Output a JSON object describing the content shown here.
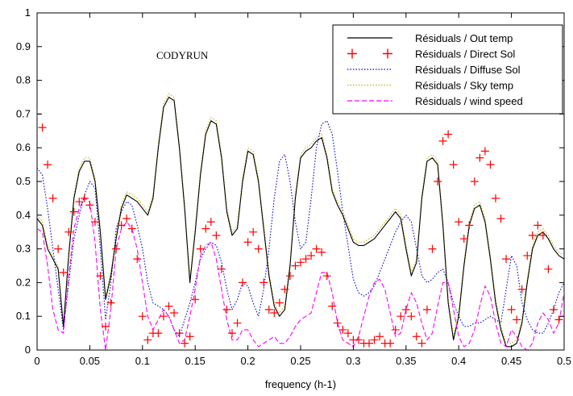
{
  "chart_data": {
    "type": "line",
    "title": "",
    "xlabel": "frequency (h-1)",
    "ylabel": "",
    "annotation": "CODYRUN",
    "xlim": [
      0,
      0.5
    ],
    "ylim": [
      0,
      1
    ],
    "x_ticks": [
      "0",
      "0.05",
      "0.1",
      "0.15",
      "0.2",
      "0.25",
      "0.3",
      "0.35",
      "0.4",
      "0.45",
      "0.5"
    ],
    "y_ticks": [
      "0",
      "0.1",
      "0.2",
      "0.3",
      "0.4",
      "0.5",
      "0.6",
      "0.7",
      "0.8",
      "0.9",
      "1"
    ],
    "grid": false,
    "legend_position": "top-right",
    "series": [
      {
        "name": "Résiduals / Out temp",
        "color": "#000000",
        "style": "solid",
        "x": [
          0,
          0.005,
          0.01,
          0.015,
          0.02,
          0.025,
          0.03,
          0.035,
          0.04,
          0.045,
          0.05,
          0.055,
          0.06,
          0.065,
          0.07,
          0.075,
          0.08,
          0.085,
          0.09,
          0.095,
          0.1,
          0.105,
          0.11,
          0.115,
          0.12,
          0.125,
          0.13,
          0.135,
          0.14,
          0.145,
          0.15,
          0.155,
          0.16,
          0.165,
          0.17,
          0.175,
          0.18,
          0.185,
          0.19,
          0.195,
          0.2,
          0.205,
          0.21,
          0.215,
          0.22,
          0.225,
          0.23,
          0.235,
          0.24,
          0.245,
          0.25,
          0.255,
          0.26,
          0.265,
          0.27,
          0.275,
          0.28,
          0.285,
          0.29,
          0.295,
          0.3,
          0.305,
          0.31,
          0.315,
          0.32,
          0.325,
          0.33,
          0.335,
          0.34,
          0.345,
          0.35,
          0.355,
          0.36,
          0.365,
          0.37,
          0.375,
          0.38,
          0.385,
          0.39,
          0.395,
          0.4,
          0.405,
          0.41,
          0.415,
          0.42,
          0.425,
          0.43,
          0.435,
          0.44,
          0.445,
          0.45,
          0.455,
          0.46,
          0.465,
          0.47,
          0.475,
          0.48,
          0.485,
          0.49,
          0.495,
          0.5
        ],
        "y": [
          0.39,
          0.37,
          0.3,
          0.27,
          0.24,
          0.07,
          0.28,
          0.45,
          0.53,
          0.56,
          0.56,
          0.5,
          0.35,
          0.15,
          0.22,
          0.33,
          0.42,
          0.46,
          0.45,
          0.44,
          0.42,
          0.4,
          0.45,
          0.6,
          0.72,
          0.75,
          0.74,
          0.6,
          0.42,
          0.2,
          0.35,
          0.52,
          0.64,
          0.68,
          0.67,
          0.57,
          0.41,
          0.34,
          0.36,
          0.5,
          0.59,
          0.58,
          0.5,
          0.36,
          0.22,
          0.13,
          0.1,
          0.12,
          0.25,
          0.45,
          0.57,
          0.59,
          0.6,
          0.62,
          0.63,
          0.57,
          0.47,
          0.43,
          0.4,
          0.36,
          0.32,
          0.31,
          0.31,
          0.32,
          0.33,
          0.35,
          0.37,
          0.39,
          0.41,
          0.39,
          0.3,
          0.22,
          0.26,
          0.45,
          0.56,
          0.57,
          0.55,
          0.37,
          0.14,
          0.03,
          0.1,
          0.25,
          0.37,
          0.42,
          0.43,
          0.38,
          0.27,
          0.14,
          0.06,
          0.01,
          0.01,
          0.02,
          0.08,
          0.2,
          0.3,
          0.34,
          0.35,
          0.33,
          0.3,
          0.28,
          0.27
        ]
      },
      {
        "name": "Résiduals / Direct Sol",
        "color": "#ff0000",
        "style": "plus",
        "x": [
          0,
          0.005,
          0.01,
          0.015,
          0.02,
          0.025,
          0.03,
          0.035,
          0.04,
          0.045,
          0.05,
          0.055,
          0.06,
          0.065,
          0.07,
          0.075,
          0.08,
          0.085,
          0.09,
          0.095,
          0.1,
          0.105,
          0.11,
          0.115,
          0.12,
          0.125,
          0.13,
          0.135,
          0.14,
          0.145,
          0.15,
          0.155,
          0.16,
          0.165,
          0.17,
          0.175,
          0.18,
          0.185,
          0.19,
          0.195,
          0.2,
          0.205,
          0.21,
          0.215,
          0.22,
          0.225,
          0.23,
          0.235,
          0.24,
          0.245,
          0.25,
          0.255,
          0.26,
          0.265,
          0.27,
          0.275,
          0.28,
          0.285,
          0.29,
          0.295,
          0.3,
          0.305,
          0.31,
          0.315,
          0.32,
          0.325,
          0.33,
          0.335,
          0.34,
          0.345,
          0.35,
          0.355,
          0.36,
          0.365,
          0.37,
          0.375,
          0.38,
          0.385,
          0.39,
          0.395,
          0.4,
          0.405,
          0.41,
          0.415,
          0.42,
          0.425,
          0.43,
          0.435,
          0.44,
          0.445,
          0.45,
          0.455,
          0.46,
          0.465,
          0.47,
          0.475,
          0.48,
          0.485,
          0.49,
          0.495,
          0.5
        ],
        "y": [
          0.7,
          0.66,
          0.55,
          0.45,
          0.3,
          0.23,
          0.35,
          0.41,
          0.44,
          0.45,
          0.43,
          0.38,
          0.22,
          0.07,
          0.14,
          0.3,
          0.37,
          0.39,
          0.36,
          0.27,
          0.1,
          0.03,
          0.05,
          0.05,
          0.1,
          0.13,
          0.11,
          0.05,
          0.02,
          0.04,
          0.15,
          0.3,
          0.36,
          0.38,
          0.34,
          0.24,
          0.12,
          0.05,
          0.08,
          0.2,
          0.32,
          0.35,
          0.3,
          0.2,
          0.12,
          0.11,
          0.14,
          0.18,
          0.22,
          0.25,
          0.26,
          0.27,
          0.28,
          0.3,
          0.29,
          0.22,
          0.13,
          0.08,
          0.06,
          0.05,
          0.03,
          0.03,
          0.02,
          0.02,
          0.03,
          0.04,
          0.02,
          0.02,
          0.06,
          0.1,
          0.12,
          0.1,
          0.04,
          0.02,
          0.12,
          0.3,
          0.5,
          0.62,
          0.64,
          0.55,
          0.38,
          0.33,
          0.37,
          0.5,
          0.57,
          0.59,
          0.55,
          0.45,
          0.39,
          0.27,
          0.12,
          0.09,
          0.18,
          0.28,
          0.34,
          0.37,
          0.34,
          0.24,
          0.12,
          0.09,
          0.1
        ]
      },
      {
        "name": "Résiduals / Diffuse Sol",
        "color": "#0000cc",
        "style": "dotted",
        "x": [
          0,
          0.005,
          0.01,
          0.015,
          0.02,
          0.025,
          0.03,
          0.035,
          0.04,
          0.045,
          0.05,
          0.055,
          0.06,
          0.065,
          0.07,
          0.075,
          0.08,
          0.085,
          0.09,
          0.095,
          0.1,
          0.105,
          0.11,
          0.115,
          0.12,
          0.125,
          0.13,
          0.135,
          0.14,
          0.145,
          0.15,
          0.155,
          0.16,
          0.165,
          0.17,
          0.175,
          0.18,
          0.185,
          0.19,
          0.195,
          0.2,
          0.205,
          0.21,
          0.215,
          0.22,
          0.225,
          0.23,
          0.235,
          0.24,
          0.245,
          0.25,
          0.255,
          0.26,
          0.265,
          0.27,
          0.275,
          0.28,
          0.285,
          0.29,
          0.295,
          0.3,
          0.305,
          0.31,
          0.315,
          0.32,
          0.325,
          0.33,
          0.335,
          0.34,
          0.345,
          0.35,
          0.355,
          0.36,
          0.365,
          0.37,
          0.375,
          0.38,
          0.385,
          0.39,
          0.395,
          0.4,
          0.405,
          0.41,
          0.415,
          0.42,
          0.425,
          0.43,
          0.435,
          0.44,
          0.445,
          0.45,
          0.455,
          0.46,
          0.465,
          0.47,
          0.475,
          0.48,
          0.485,
          0.49,
          0.495,
          0.5
        ],
        "y": [
          0.54,
          0.52,
          0.42,
          0.3,
          0.18,
          0.06,
          0.2,
          0.33,
          0.4,
          0.46,
          0.5,
          0.48,
          0.3,
          0.09,
          0.2,
          0.36,
          0.41,
          0.44,
          0.43,
          0.37,
          0.3,
          0.2,
          0.14,
          0.13,
          0.12,
          0.1,
          0.06,
          0.04,
          0.09,
          0.14,
          0.2,
          0.27,
          0.3,
          0.32,
          0.31,
          0.26,
          0.18,
          0.12,
          0.15,
          0.2,
          0.19,
          0.14,
          0.1,
          0.18,
          0.3,
          0.45,
          0.56,
          0.58,
          0.5,
          0.38,
          0.3,
          0.32,
          0.45,
          0.6,
          0.67,
          0.68,
          0.64,
          0.53,
          0.41,
          0.31,
          0.21,
          0.17,
          0.16,
          0.17,
          0.19,
          0.23,
          0.27,
          0.31,
          0.35,
          0.38,
          0.4,
          0.38,
          0.3,
          0.22,
          0.2,
          0.21,
          0.23,
          0.24,
          0.2,
          0.14,
          0.1,
          0.07,
          0.07,
          0.08,
          0.08,
          0.09,
          0.1,
          0.09,
          0.08,
          0.18,
          0.28,
          0.25,
          0.14,
          0.09,
          0.06,
          0.05,
          0.05,
          0.08,
          0.12,
          0.17,
          0.2
        ]
      },
      {
        "name": "Résiduals / Sky temp",
        "color": "#c8b400",
        "style": "dotted",
        "x": [
          0,
          0.005,
          0.01,
          0.015,
          0.02,
          0.025,
          0.03,
          0.035,
          0.04,
          0.045,
          0.05,
          0.055,
          0.06,
          0.065,
          0.07,
          0.075,
          0.08,
          0.085,
          0.09,
          0.095,
          0.1,
          0.105,
          0.11,
          0.115,
          0.12,
          0.125,
          0.13,
          0.135,
          0.14,
          0.145,
          0.15,
          0.155,
          0.16,
          0.165,
          0.17,
          0.175,
          0.18,
          0.185,
          0.19,
          0.195,
          0.2,
          0.205,
          0.21,
          0.215,
          0.22,
          0.225,
          0.23,
          0.235,
          0.24,
          0.245,
          0.25,
          0.255,
          0.26,
          0.265,
          0.27,
          0.275,
          0.28,
          0.285,
          0.29,
          0.295,
          0.3,
          0.305,
          0.31,
          0.315,
          0.32,
          0.325,
          0.33,
          0.335,
          0.34,
          0.345,
          0.35,
          0.355,
          0.36,
          0.365,
          0.37,
          0.375,
          0.38,
          0.385,
          0.39,
          0.395,
          0.4,
          0.405,
          0.41,
          0.415,
          0.42,
          0.425,
          0.43,
          0.435,
          0.44,
          0.445,
          0.45,
          0.455,
          0.46,
          0.465,
          0.47,
          0.475,
          0.48,
          0.485,
          0.49,
          0.495,
          0.5
        ],
        "y": [
          0.4,
          0.38,
          0.31,
          0.28,
          0.25,
          0.07,
          0.29,
          0.46,
          0.54,
          0.57,
          0.57,
          0.51,
          0.36,
          0.16,
          0.23,
          0.34,
          0.43,
          0.47,
          0.46,
          0.45,
          0.43,
          0.41,
          0.46,
          0.61,
          0.73,
          0.76,
          0.75,
          0.61,
          0.43,
          0.21,
          0.36,
          0.53,
          0.65,
          0.69,
          0.68,
          0.58,
          0.42,
          0.35,
          0.37,
          0.51,
          0.6,
          0.59,
          0.51,
          0.37,
          0.23,
          0.14,
          0.11,
          0.13,
          0.26,
          0.46,
          0.58,
          0.6,
          0.61,
          0.63,
          0.64,
          0.58,
          0.48,
          0.44,
          0.41,
          0.37,
          0.33,
          0.32,
          0.32,
          0.33,
          0.34,
          0.36,
          0.38,
          0.4,
          0.42,
          0.4,
          0.31,
          0.23,
          0.27,
          0.46,
          0.57,
          0.58,
          0.56,
          0.38,
          0.15,
          0.04,
          0.11,
          0.26,
          0.38,
          0.43,
          0.44,
          0.39,
          0.28,
          0.15,
          0.07,
          0.02,
          0.02,
          0.03,
          0.09,
          0.21,
          0.31,
          0.35,
          0.36,
          0.34,
          0.31,
          0.29,
          0.28
        ]
      },
      {
        "name": "Résiduals / wind speed",
        "color": "#ff00ff",
        "style": "dashed",
        "x": [
          0,
          0.005,
          0.01,
          0.015,
          0.02,
          0.025,
          0.03,
          0.035,
          0.04,
          0.045,
          0.05,
          0.055,
          0.06,
          0.065,
          0.07,
          0.075,
          0.08,
          0.085,
          0.09,
          0.095,
          0.1,
          0.105,
          0.11,
          0.115,
          0.12,
          0.125,
          0.13,
          0.135,
          0.14,
          0.145,
          0.15,
          0.155,
          0.16,
          0.165,
          0.17,
          0.175,
          0.18,
          0.185,
          0.19,
          0.195,
          0.2,
          0.205,
          0.21,
          0.215,
          0.22,
          0.225,
          0.23,
          0.235,
          0.24,
          0.245,
          0.25,
          0.255,
          0.26,
          0.265,
          0.27,
          0.275,
          0.28,
          0.285,
          0.29,
          0.295,
          0.3,
          0.305,
          0.31,
          0.315,
          0.32,
          0.325,
          0.33,
          0.335,
          0.34,
          0.345,
          0.35,
          0.355,
          0.36,
          0.365,
          0.37,
          0.375,
          0.38,
          0.385,
          0.39,
          0.395,
          0.4,
          0.405,
          0.41,
          0.415,
          0.42,
          0.425,
          0.43,
          0.435,
          0.44,
          0.445,
          0.45,
          0.455,
          0.46,
          0.465,
          0.47,
          0.475,
          0.48,
          0.485,
          0.49,
          0.495,
          0.5
        ],
        "y": [
          0.36,
          0.35,
          0.25,
          0.12,
          0.06,
          0.05,
          0.22,
          0.36,
          0.42,
          0.45,
          0.44,
          0.32,
          0.12,
          0.0,
          0.12,
          0.3,
          0.36,
          0.38,
          0.36,
          0.3,
          0.2,
          0.1,
          0.06,
          0.09,
          0.12,
          0.1,
          0.06,
          0.02,
          0.03,
          0.1,
          0.18,
          0.28,
          0.31,
          0.32,
          0.27,
          0.18,
          0.09,
          0.03,
          0.03,
          0.06,
          0.06,
          0.03,
          0.01,
          0.02,
          0.03,
          0.04,
          0.02,
          0.02,
          0.04,
          0.07,
          0.09,
          0.1,
          0.11,
          0.17,
          0.23,
          0.23,
          0.17,
          0.08,
          0.03,
          0.02,
          0.01,
          0.04,
          0.1,
          0.16,
          0.2,
          0.21,
          0.18,
          0.11,
          0.04,
          0.05,
          0.12,
          0.17,
          0.14,
          0.08,
          0.03,
          0.05,
          0.13,
          0.2,
          0.2,
          0.12,
          0.04,
          0.01,
          0.02,
          0.06,
          0.13,
          0.19,
          0.16,
          0.08,
          0.02,
          0.01,
          0.06,
          0.04,
          0.01,
          0.0,
          0.02,
          0.08,
          0.11,
          0.09,
          0.05,
          0.08,
          0.17
        ]
      }
    ]
  }
}
